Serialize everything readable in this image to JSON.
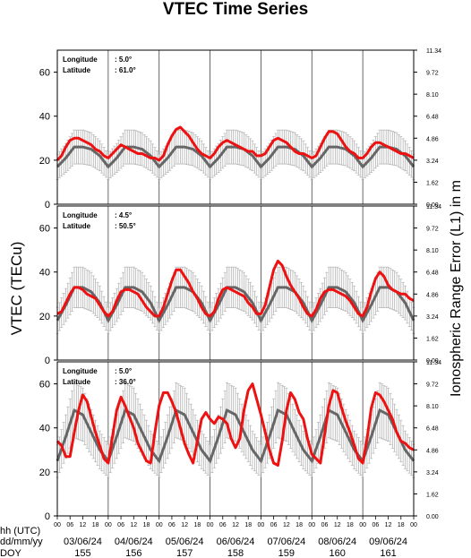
{
  "chart_data": {
    "type": "line",
    "title": "VTEC Time Series",
    "ylabel_left": "VTEC (TECu)",
    "ylabel_right": "Ionospheric Range Error (L1) in m",
    "y_ticks_left": [
      "0",
      "20",
      "40",
      "60"
    ],
    "y_ticks_right": [
      "0.00",
      "1.62",
      "3.24",
      "4.86",
      "6.48",
      "8.10",
      "9.72",
      "11.34"
    ],
    "ylim": [
      0,
      70
    ],
    "xlim": [
      0,
      168
    ],
    "x_unit": "hours since 03/06/24 00 UTC",
    "row_labels": [
      "hh (UTC)",
      "dd/mm/yy",
      "DOY"
    ],
    "hour_ticks": [
      "00",
      "06",
      "12",
      "18"
    ],
    "days": [
      {
        "date": "03/06/24",
        "doy": "155"
      },
      {
        "date": "04/06/24",
        "doy": "156"
      },
      {
        "date": "05/06/24",
        "doy": "157"
      },
      {
        "date": "06/06/24",
        "doy": "158"
      },
      {
        "date": "07/06/24",
        "doy": "159"
      },
      {
        "date": "08/06/24",
        "doy": "160"
      },
      {
        "date": "09/06/24",
        "doy": "161"
      }
    ],
    "colors": {
      "measured": "#ee1111",
      "reference": "#666666",
      "error_bar": "#aaaaaa"
    },
    "panels": [
      {
        "lon_label": "Longitude",
        "lon_value": ":   5.0°",
        "lat_label": "Latitude",
        "lat_value": ": 61.0°",
        "series": [
          {
            "role": "measured",
            "x": [
              0,
              2,
              4,
              6,
              8,
              10,
              12,
              14,
              16,
              18,
              20,
              22,
              24,
              26,
              28,
              30,
              32,
              34,
              36,
              38,
              40,
              42,
              44,
              46,
              48,
              50,
              52,
              54,
              56,
              58,
              60,
              62,
              64,
              66,
              68,
              70,
              72,
              74,
              76,
              78,
              80,
              82,
              84,
              86,
              88,
              90,
              92,
              94,
              96,
              98,
              100,
              102,
              104,
              106,
              108,
              110,
              112,
              114,
              116,
              118,
              120,
              122,
              124,
              126,
              128,
              130,
              132,
              134,
              136,
              138,
              140,
              142,
              144,
              146,
              148,
              150,
              152,
              154,
              156,
              158,
              160,
              162,
              164,
              166,
              168
            ],
            "y": [
              20,
              22,
              26,
              29,
              30,
              30,
              29,
              28,
              27,
              25,
              24,
              22,
              21,
              23,
              25,
              27,
              26,
              25,
              24,
              23,
              23,
              22,
              21,
              21,
              20,
              22,
              27,
              31,
              34,
              35,
              33,
              31,
              28,
              25,
              23,
              22,
              21,
              23,
              26,
              28,
              29,
              28,
              27,
              26,
              25,
              24,
              24,
              22,
              22,
              23,
              26,
              29,
              30,
              29,
              28,
              26,
              24,
              23,
              23,
              22,
              21,
              22,
              26,
              30,
              33,
              33,
              32,
              29,
              26,
              24,
              23,
              21,
              21,
              23,
              26,
              28,
              28,
              27,
              26,
              25,
              24,
              23,
              23,
              22,
              21
            ]
          },
          {
            "role": "reference",
            "x": [
              0,
              4,
              8,
              12,
              16,
              20,
              24,
              28,
              32,
              36,
              40,
              44,
              48,
              52,
              56,
              60,
              64,
              68,
              72,
              76,
              80,
              84,
              88,
              92,
              96,
              100,
              104,
              108,
              112,
              116,
              120,
              124,
              128,
              132,
              136,
              140,
              144,
              148,
              152,
              156,
              160,
              164,
              168
            ],
            "y": [
              17,
              21,
              26,
              26,
              25,
              22,
              17,
              21,
              26,
              26,
              25,
              22,
              17,
              21,
              26,
              26,
              25,
              22,
              17,
              21,
              26,
              26,
              25,
              22,
              17,
              21,
              26,
              26,
              25,
              22,
              17,
              21,
              26,
              26,
              25,
              22,
              17,
              21,
              26,
              26,
              25,
              22,
              17
            ]
          }
        ]
      },
      {
        "lon_label": "Longitude",
        "lon_value": ":   4.5°",
        "lat_label": "Latitude",
        "lat_value": ": 50.5°",
        "series": [
          {
            "role": "measured",
            "x": [
              0,
              2,
              4,
              6,
              8,
              10,
              12,
              14,
              16,
              18,
              20,
              22,
              24,
              26,
              28,
              30,
              32,
              34,
              36,
              38,
              40,
              42,
              44,
              46,
              48,
              50,
              52,
              54,
              56,
              58,
              60,
              62,
              64,
              66,
              68,
              70,
              72,
              74,
              76,
              78,
              80,
              82,
              84,
              86,
              88,
              90,
              92,
              94,
              96,
              98,
              100,
              102,
              104,
              106,
              108,
              110,
              112,
              114,
              116,
              118,
              120,
              122,
              124,
              126,
              128,
              130,
              132,
              134,
              136,
              138,
              140,
              142,
              144,
              146,
              148,
              150,
              152,
              154,
              156,
              158,
              160,
              162,
              164,
              166,
              168
            ],
            "y": [
              21,
              22,
              26,
              30,
              33,
              33,
              32,
              30,
              29,
              28,
              25,
              22,
              20,
              22,
              27,
              31,
              32,
              32,
              31,
              30,
              27,
              24,
              22,
              20,
              20,
              24,
              30,
              36,
              41,
              41,
              38,
              35,
              31,
              28,
              24,
              21,
              20,
              22,
              28,
              32,
              33,
              32,
              31,
              30,
              29,
              26,
              24,
              21,
              21,
              25,
              33,
              41,
              45,
              43,
              38,
              34,
              31,
              28,
              24,
              21,
              20,
              23,
              28,
              31,
              32,
              32,
              31,
              30,
              29,
              27,
              24,
              21,
              20,
              24,
              31,
              37,
              40,
              38,
              34,
              32,
              31,
              30,
              30,
              28,
              27
            ]
          },
          {
            "role": "reference",
            "x": [
              0,
              4,
              8,
              12,
              16,
              20,
              24,
              28,
              32,
              36,
              40,
              44,
              48,
              52,
              56,
              60,
              64,
              68,
              72,
              76,
              80,
              84,
              88,
              92,
              96,
              100,
              104,
              108,
              112,
              116,
              120,
              124,
              128,
              132,
              136,
              140,
              144,
              148,
              152,
              156,
              160,
              164,
              168
            ],
            "y": [
              18,
              25,
              33,
              33,
              31,
              26,
              18,
              25,
              33,
              33,
              31,
              26,
              18,
              25,
              33,
              33,
              31,
              26,
              18,
              25,
              33,
              33,
              31,
              26,
              18,
              25,
              33,
              33,
              31,
              26,
              18,
              25,
              33,
              33,
              31,
              26,
              18,
              25,
              33,
              33,
              31,
              26,
              18
            ]
          }
        ]
      },
      {
        "lon_label": "Longitude",
        "lon_value": ":   5.0°",
        "lat_label": "Latitude",
        "lat_value": ": 36.0°",
        "series": [
          {
            "role": "measured",
            "x": [
              0,
              2,
              4,
              6,
              8,
              10,
              12,
              14,
              16,
              18,
              20,
              22,
              24,
              26,
              28,
              30,
              32,
              34,
              36,
              38,
              40,
              42,
              44,
              46,
              48,
              50,
              52,
              54,
              56,
              58,
              60,
              62,
              64,
              66,
              68,
              70,
              72,
              74,
              76,
              78,
              80,
              82,
              84,
              86,
              88,
              90,
              92,
              94,
              96,
              98,
              100,
              102,
              104,
              106,
              108,
              110,
              112,
              114,
              116,
              118,
              120,
              122,
              124,
              126,
              128,
              130,
              132,
              134,
              136,
              138,
              140,
              142,
              144,
              146,
              148,
              150,
              152,
              154,
              156,
              158,
              160,
              162,
              164,
              166,
              168
            ],
            "y": [
              34,
              32,
              27,
              27,
              38,
              48,
              55,
              52,
              45,
              38,
              32,
              26,
              24,
              36,
              48,
              54,
              50,
              45,
              40,
              33,
              29,
              25,
              24,
              38,
              50,
              56,
              56,
              52,
              47,
              40,
              33,
              28,
              24,
              34,
              44,
              47,
              44,
              42,
              45,
              44,
              42,
              35,
              31,
              35,
              48,
              57,
              60,
              53,
              46,
              38,
              30,
              24,
              23,
              34,
              48,
              56,
              53,
              47,
              44,
              35,
              28,
              26,
              24,
              37,
              50,
              57,
              56,
              49,
              43,
              38,
              32,
              26,
              24,
              35,
              49,
              56,
              55,
              52,
              48,
              44,
              38,
              34,
              33,
              31,
              30
            ]
          },
          {
            "role": "reference",
            "x": [
              0,
              4,
              8,
              12,
              16,
              20,
              24,
              28,
              32,
              36,
              40,
              44,
              48,
              52,
              56,
              60,
              64,
              68,
              72,
              76,
              80,
              84,
              88,
              92,
              96,
              100,
              104,
              108,
              112,
              116,
              120,
              124,
              128,
              132,
              136,
              140,
              144,
              148,
              152,
              156,
              160,
              164,
              168
            ],
            "y": [
              25,
              36,
              48,
              46,
              38,
              30,
              25,
              36,
              48,
              46,
              38,
              30,
              25,
              36,
              48,
              46,
              38,
              30,
              25,
              36,
              48,
              46,
              38,
              30,
              25,
              36,
              48,
              46,
              38,
              30,
              25,
              36,
              48,
              46,
              38,
              30,
              25,
              36,
              48,
              46,
              38,
              30,
              25
            ]
          }
        ]
      }
    ]
  }
}
